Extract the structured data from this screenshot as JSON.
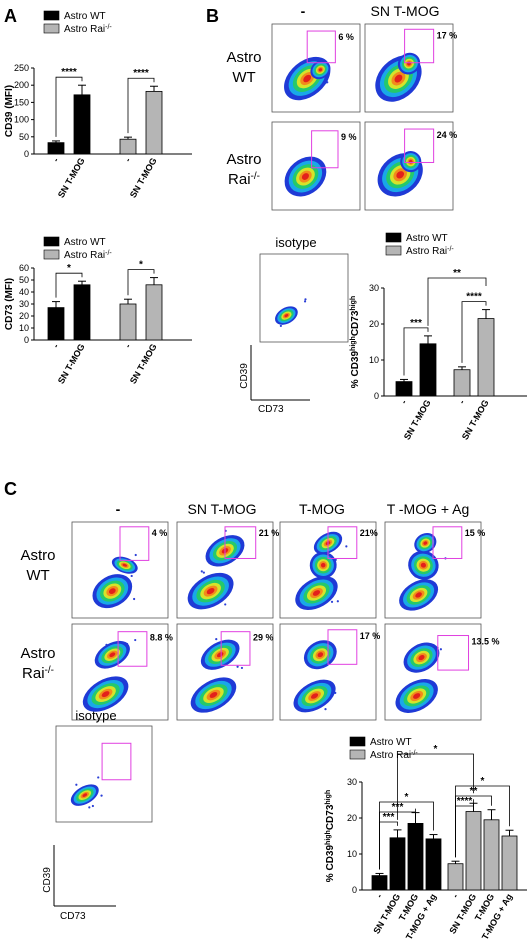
{
  "panel_labels": [
    "A",
    "B",
    "C"
  ],
  "legend": {
    "wt": "Astro WT",
    "rai": "Astro Rai",
    "rai_sup": "-/-"
  },
  "colors": {
    "wt": "#000000",
    "rai": "#b5b5b5",
    "gate": "#e040e0",
    "axis": "#000000"
  },
  "axes": {
    "cd39": "CD39",
    "cd73": "CD73"
  },
  "row_labels": {
    "astro": "Astro",
    "wt": "WT",
    "rai": "Rai",
    "rai_sup": "-/-",
    "isotype": "isotype"
  },
  "columns_b": [
    "-",
    "SN T-MOG"
  ],
  "columns_c": [
    "-",
    "SN T-MOG",
    "T-MOG",
    "T -MOG + Ag"
  ],
  "gate_percent_b": {
    "wt": [
      "6 %",
      "17 %"
    ],
    "rai": [
      "9 %",
      "24 %"
    ]
  },
  "gate_percent_c": {
    "wt": [
      "4 %",
      "21 %",
      "21%",
      "15 %"
    ],
    "rai": [
      "8.8 %",
      "29 %",
      "17 %",
      "13.5 %"
    ]
  },
  "chart_data": [
    {
      "type": "bar",
      "panel": "A-top",
      "ylabel": "CD39 (MFI)",
      "ylim": [
        0,
        250
      ],
      "yticks": [
        0,
        50,
        100,
        150,
        200,
        250
      ],
      "groups": [
        "Astro WT",
        "Astro Rai-/-"
      ],
      "categories": [
        "-",
        "SN T-MOG"
      ],
      "series": [
        {
          "name": "Astro WT",
          "values": [
            33,
            172
          ],
          "errors": [
            5,
            28
          ]
        },
        {
          "name": "Astro Rai-/-",
          "values": [
            43,
            182
          ],
          "errors": [
            6,
            15
          ]
        }
      ],
      "significance": [
        {
          "group": 0,
          "from": 0,
          "to": 1,
          "label": "****"
        },
        {
          "group": 1,
          "from": 0,
          "to": 1,
          "label": "****"
        }
      ]
    },
    {
      "type": "bar",
      "panel": "A-bottom",
      "ylabel": "CD73 (MFI)",
      "ylim": [
        0,
        60
      ],
      "yticks": [
        0,
        10,
        20,
        30,
        40,
        50,
        60
      ],
      "groups": [
        "Astro WT",
        "Astro Rai-/-"
      ],
      "categories": [
        "-",
        "SN T-MOG"
      ],
      "series": [
        {
          "name": "Astro WT",
          "values": [
            27,
            46
          ],
          "errors": [
            5,
            3
          ]
        },
        {
          "name": "Astro Rai-/-",
          "values": [
            30,
            46
          ],
          "errors": [
            4,
            6
          ]
        }
      ],
      "significance": [
        {
          "group": 0,
          "from": 0,
          "to": 1,
          "label": "*"
        },
        {
          "group": 1,
          "from": 0,
          "to": 1,
          "label": "*"
        }
      ]
    },
    {
      "type": "bar",
      "panel": "B",
      "ylabel": "% CD39highCD73high",
      "ylim": [
        0,
        30
      ],
      "yticks": [
        0,
        10,
        20,
        30
      ],
      "groups": [
        "Astro WT",
        "Astro Rai-/-"
      ],
      "categories": [
        "-",
        "SN T-MOG"
      ],
      "series": [
        {
          "name": "Astro WT",
          "values": [
            4,
            14.5
          ],
          "errors": [
            0.6,
            2.2
          ]
        },
        {
          "name": "Astro Rai-/-",
          "values": [
            7.3,
            21.5
          ],
          "errors": [
            0.8,
            2.5
          ]
        }
      ],
      "significance": [
        {
          "group": 0,
          "from": 0,
          "to": 1,
          "label": "***"
        },
        {
          "group": 1,
          "from": 0,
          "to": 1,
          "label": "****"
        },
        {
          "cross": true,
          "from": [
            0,
            1
          ],
          "to": [
            1,
            1
          ],
          "label": "**"
        }
      ]
    },
    {
      "type": "bar",
      "panel": "C",
      "ylabel": "% CD39highCD73high",
      "ylim": [
        0,
        30
      ],
      "yticks": [
        0,
        10,
        20,
        30
      ],
      "groups": [
        "Astro WT",
        "Astro Rai-/-"
      ],
      "categories": [
        "-",
        "SN T-MOG",
        "T-MOG",
        "T-MOG + Ag"
      ],
      "series": [
        {
          "name": "Astro WT",
          "values": [
            4,
            14.5,
            18.5,
            14.2
          ],
          "errors": [
            0.6,
            2.2,
            3,
            1.2
          ]
        },
        {
          "name": "Astro Rai-/-",
          "values": [
            7.3,
            21.8,
            19.5,
            15
          ],
          "errors": [
            0.7,
            2.3,
            2.8,
            1.6
          ]
        }
      ],
      "significance": [
        {
          "group": 0,
          "from": 0,
          "to": 1,
          "label": "***"
        },
        {
          "group": 0,
          "from": 0,
          "to": 2,
          "label": "***"
        },
        {
          "group": 0,
          "from": 0,
          "to": 3,
          "label": "*"
        },
        {
          "group": 1,
          "from": 0,
          "to": 1,
          "label": "****"
        },
        {
          "group": 1,
          "from": 0,
          "to": 2,
          "label": "**"
        },
        {
          "group": 1,
          "from": 0,
          "to": 3,
          "label": "*"
        },
        {
          "cross": true,
          "from": [
            0,
            1
          ],
          "to": [
            1,
            1
          ],
          "label": "*"
        }
      ]
    }
  ]
}
